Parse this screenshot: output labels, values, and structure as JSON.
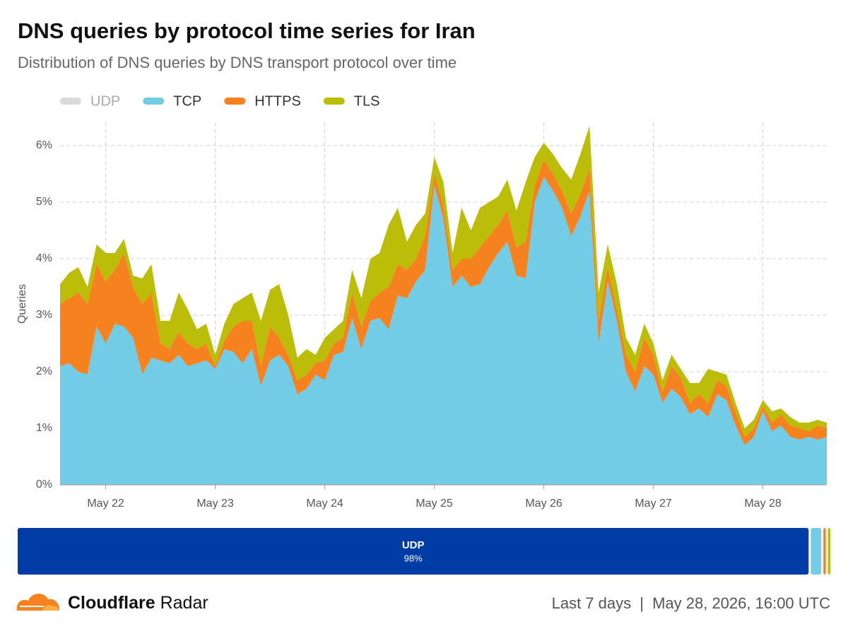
{
  "chart_data": [
    {
      "type": "area",
      "title": "DNS queries by protocol time series for Iran",
      "subtitle": "Distribution of DNS queries by DNS transport protocol over time",
      "y_label": "Queries",
      "hidden_series": [
        {
          "name": "UDP",
          "color": "#d9d9d9"
        }
      ],
      "categories": [
        null,
        null,
        null,
        null,
        null,
        "May 22",
        null,
        null,
        null,
        null,
        null,
        null,
        null,
        null,
        null,
        null,
        null,
        "May 23",
        null,
        null,
        null,
        null,
        null,
        null,
        null,
        null,
        null,
        null,
        null,
        "May 24",
        null,
        null,
        null,
        null,
        null,
        null,
        null,
        null,
        null,
        null,
        null,
        "May 25",
        null,
        null,
        null,
        null,
        null,
        null,
        null,
        null,
        null,
        null,
        null,
        "May 26",
        null,
        null,
        null,
        null,
        null,
        null,
        null,
        null,
        null,
        null,
        null,
        "May 27",
        null,
        null,
        null,
        null,
        null,
        null,
        null,
        null,
        null,
        null,
        null,
        "May 28",
        null,
        null,
        null,
        null,
        null,
        null,
        null
      ],
      "series": [
        {
          "name": "TCP",
          "color": "#72cce6",
          "values": [
            2.1,
            2.15,
            2.0,
            1.95,
            2.8,
            2.5,
            2.85,
            2.8,
            2.6,
            1.95,
            2.25,
            2.2,
            2.15,
            2.3,
            2.1,
            2.15,
            2.2,
            2.05,
            2.4,
            2.35,
            2.15,
            2.4,
            1.75,
            2.2,
            2.3,
            2.1,
            1.6,
            1.7,
            1.95,
            1.85,
            2.3,
            2.35,
            2.95,
            2.4,
            2.9,
            2.95,
            2.75,
            3.35,
            3.3,
            3.6,
            3.8,
            5.3,
            4.7,
            3.5,
            3.7,
            3.5,
            3.55,
            3.85,
            4.1,
            4.3,
            3.7,
            3.65,
            5.0,
            5.45,
            5.2,
            4.9,
            4.4,
            4.75,
            5.2,
            2.5,
            3.6,
            2.9,
            2.0,
            1.65,
            2.1,
            1.95,
            1.45,
            1.7,
            1.55,
            1.25,
            1.35,
            1.2,
            1.6,
            1.5,
            1.05,
            0.7,
            0.85,
            1.3,
            0.95,
            1.05,
            0.85,
            0.8,
            0.85,
            0.8,
            0.85
          ]
        },
        {
          "name": "HTTPS",
          "color": "#f6821f",
          "values": [
            1.1,
            1.15,
            1.4,
            1.25,
            1.1,
            1.1,
            0.95,
            1.3,
            0.9,
            1.25,
            1.15,
            0.3,
            0.25,
            0.4,
            0.4,
            0.25,
            0.3,
            0.05,
            0.15,
            0.45,
            0.75,
            0.5,
            0.35,
            0.6,
            0.3,
            0.2,
            0.25,
            0.25,
            0.2,
            0.35,
            0.2,
            0.25,
            0.45,
            0.4,
            0.35,
            0.45,
            0.75,
            0.55,
            0.5,
            0.4,
            0.6,
            0.2,
            0.25,
            0.3,
            0.3,
            0.5,
            0.65,
            0.55,
            0.5,
            0.55,
            0.5,
            0.65,
            0.3,
            0.3,
            0.3,
            0.3,
            0.4,
            0.4,
            0.4,
            0.4,
            0.25,
            0.2,
            0.3,
            0.35,
            0.5,
            0.35,
            0.2,
            0.4,
            0.35,
            0.2,
            0.25,
            0.25,
            0.25,
            0.25,
            0.25,
            0.15,
            0.15,
            0.1,
            0.15,
            0.2,
            0.2,
            0.2,
            0.1,
            0.25,
            0.15
          ]
        },
        {
          "name": "TLS",
          "color": "#bbbd08",
          "values": [
            0.35,
            0.45,
            0.45,
            0.3,
            0.35,
            0.5,
            0.3,
            0.25,
            0.2,
            0.45,
            0.5,
            0.4,
            0.5,
            0.7,
            0.6,
            0.35,
            0.35,
            0.2,
            0.3,
            0.4,
            0.4,
            0.5,
            0.8,
            0.65,
            0.95,
            0.7,
            0.4,
            0.45,
            0.15,
            0.4,
            0.25,
            0.3,
            0.4,
            0.5,
            0.75,
            0.7,
            1.1,
            1.0,
            0.5,
            0.6,
            0.4,
            0.3,
            0.4,
            0.3,
            0.9,
            0.5,
            0.7,
            0.6,
            0.5,
            0.55,
            0.65,
            1.05,
            0.5,
            0.3,
            0.35,
            0.4,
            0.6,
            0.7,
            0.75,
            0.5,
            0.4,
            0.45,
            0.3,
            0.3,
            0.25,
            0.2,
            0.2,
            0.2,
            0.15,
            0.35,
            0.2,
            0.6,
            0.15,
            0.2,
            0.15,
            0.15,
            0.15,
            0.1,
            0.2,
            0.1,
            0.15,
            0.1,
            0.15,
            0.1,
            0.1
          ]
        }
      ],
      "ylim": [
        0,
        6.4
      ],
      "yticks": [
        {
          "value": 0,
          "label": "0%"
        },
        {
          "value": 1,
          "label": "1%"
        },
        {
          "value": 2,
          "label": "2%"
        },
        {
          "value": 3,
          "label": "3%"
        },
        {
          "value": 4,
          "label": "4%"
        },
        {
          "value": 5,
          "label": "5%"
        },
        {
          "value": 6,
          "label": "6%"
        }
      ],
      "grid": true
    },
    {
      "type": "bar",
      "categories": [
        "UDP",
        null,
        null,
        null
      ],
      "values": [
        98,
        1.3,
        0.3,
        0.3
      ],
      "value_labels": [
        "98%",
        null,
        null,
        null
      ],
      "colors": [
        "#003ca6",
        "#72cce6",
        "#f6821f",
        "#bbbd08"
      ]
    }
  ],
  "footer": {
    "brand_bold": "Cloudflare",
    "brand": "Radar",
    "range": "Last 7 days",
    "separator": "|",
    "timestamp": "May 28, 2026, 16:00 UTC"
  }
}
